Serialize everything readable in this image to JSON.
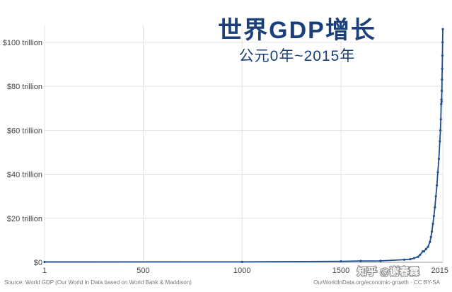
{
  "chart_data": {
    "type": "line",
    "title": "世界GDP增长",
    "subtitle": "公元0年~2015年",
    "xlabel": "",
    "ylabel": "",
    "x_ticks": [
      "1",
      "500",
      "1000",
      "1500",
      "2015"
    ],
    "y_ticks": [
      "$0",
      "$20 trillion",
      "$40 trillion",
      "$60 trillion",
      "$80 trillion",
      "$100 trillion"
    ],
    "xlim": [
      1,
      2015
    ],
    "ylim": [
      0,
      108
    ],
    "grid": true,
    "series": [
      {
        "color": "#1f4e8c",
        "x": [
          1,
          1000,
          1500,
          1600,
          1700,
          1820,
          1850,
          1870,
          1890,
          1900,
          1913,
          1920,
          1930,
          1940,
          1950,
          1955,
          1960,
          1965,
          1970,
          1975,
          1980,
          1985,
          1990,
          1995,
          2000,
          2003,
          2005,
          2007,
          2008,
          2009,
          2010,
          2011,
          2012,
          2013,
          2014,
          2015
        ],
        "y": [
          0.18,
          0.21,
          0.43,
          0.6,
          0.64,
          1.2,
          1.4,
          1.9,
          2.5,
          3.4,
          4.9,
          5.0,
          6.0,
          7.0,
          9.3,
          11.5,
          14.0,
          17.5,
          21.0,
          25.0,
          30.0,
          35.0,
          41.0,
          47.0,
          55.0,
          60.0,
          65.0,
          72.0,
          74.0,
          73.0,
          78.0,
          83.0,
          88.0,
          94.0,
          100.0,
          106.0
        ]
      }
    ]
  },
  "footer": {
    "source": "Source: World GDP (Our World In Data based on World Bank & Maddison)",
    "license": "OurWorldInData.org/economic-growth · CC BY-SA"
  },
  "watermark": "知乎 @谢春霖"
}
